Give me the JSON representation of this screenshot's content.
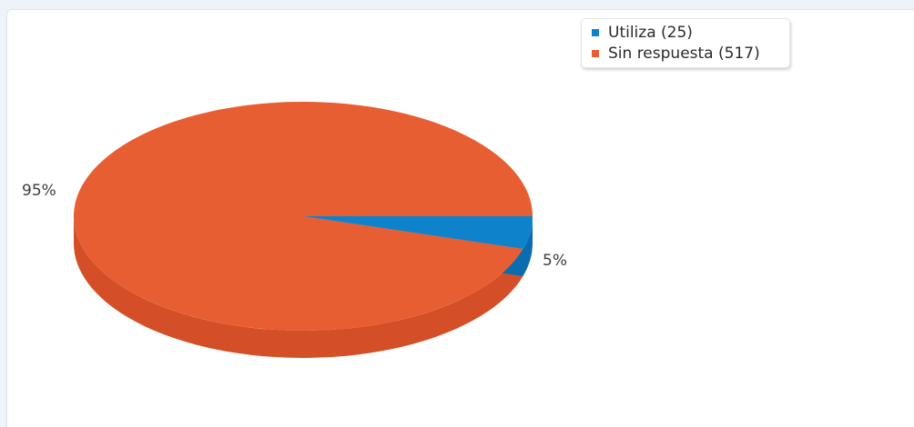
{
  "chart_data": {
    "type": "pie",
    "categories": [
      "Utiliza",
      "Sin respuesta"
    ],
    "values": [
      25,
      517
    ],
    "legend_labels": [
      "Utiliza (25)",
      "Sin respuesta (517)"
    ],
    "percent_labels": [
      "5%",
      "95%"
    ],
    "colors": [
      "#0f82cc",
      "#e85e33"
    ],
    "side_colors": [
      "#0b6db0",
      "#d44f27"
    ],
    "legend": "top-right",
    "style": "3d"
  }
}
